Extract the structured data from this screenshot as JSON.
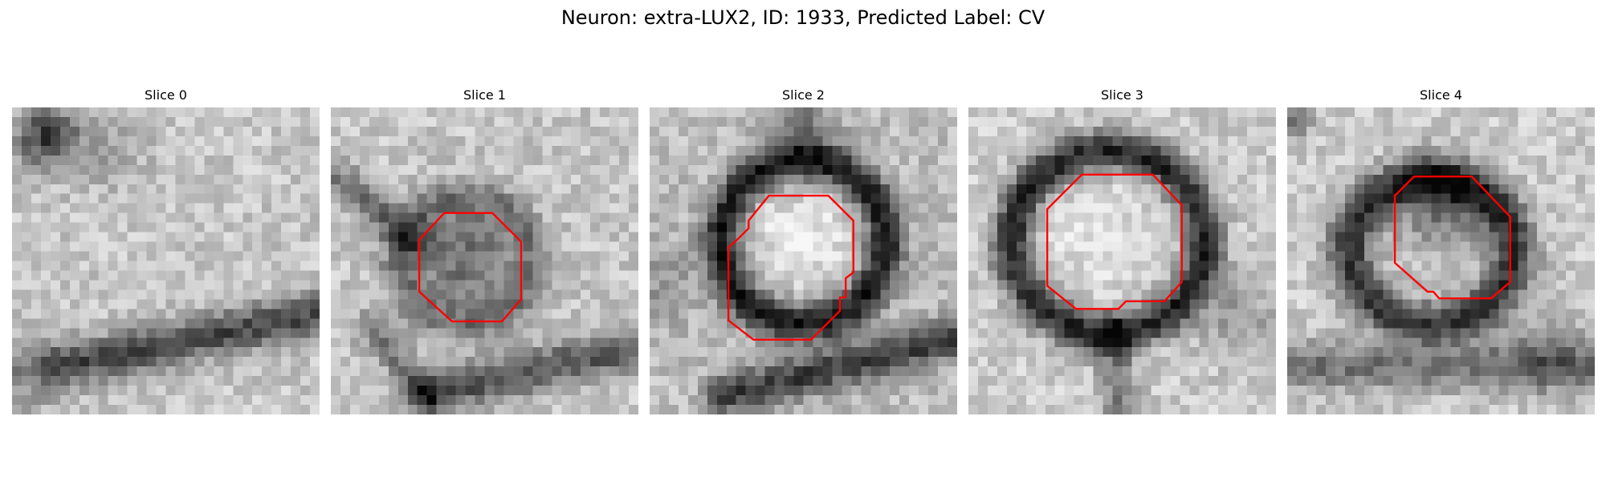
{
  "figure": {
    "title": "Neuron: extra-LUX2, ID: 1933, Predicted Label: CV",
    "contour_color": "#ff0000",
    "colormap": "grayscale"
  },
  "slices": [
    {
      "title": "Slice 0",
      "has_contour": false
    },
    {
      "title": "Slice 1",
      "has_contour": true
    },
    {
      "title": "Slice 2",
      "has_contour": true
    },
    {
      "title": "Slice 3",
      "has_contour": true
    },
    {
      "title": "Slice 4",
      "has_contour": true
    }
  ]
}
